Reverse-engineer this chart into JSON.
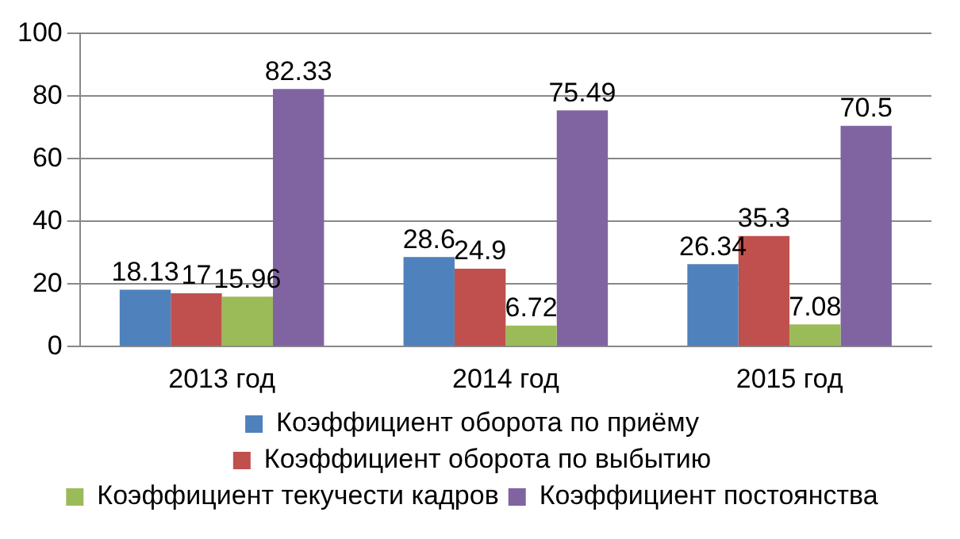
{
  "chart_data": {
    "type": "bar",
    "categories": [
      "2013 год",
      "2014 год",
      "2015 год"
    ],
    "series": [
      {
        "name": "Коэффициент оборота по приёму",
        "color": "#4f81bd",
        "values": [
          18.13,
          28.6,
          26.34
        ]
      },
      {
        "name": "Коэффициент оборота по выбытию",
        "color": "#c0504d",
        "values": [
          17,
          24.9,
          35.3
        ]
      },
      {
        "name": "Коэффициент текучести кадров",
        "color": "#9bbb59",
        "values": [
          15.96,
          6.72,
          7.08
        ]
      },
      {
        "name": "Коэффициент постоянства",
        "color": "#8064a2",
        "values": [
          82.33,
          75.49,
          70.5
        ]
      }
    ],
    "ylim": [
      0,
      100
    ],
    "yticks": [
      0,
      20,
      40,
      60,
      80,
      100
    ],
    "grid": "y",
    "legend": "bottom",
    "data_labels": true
  }
}
